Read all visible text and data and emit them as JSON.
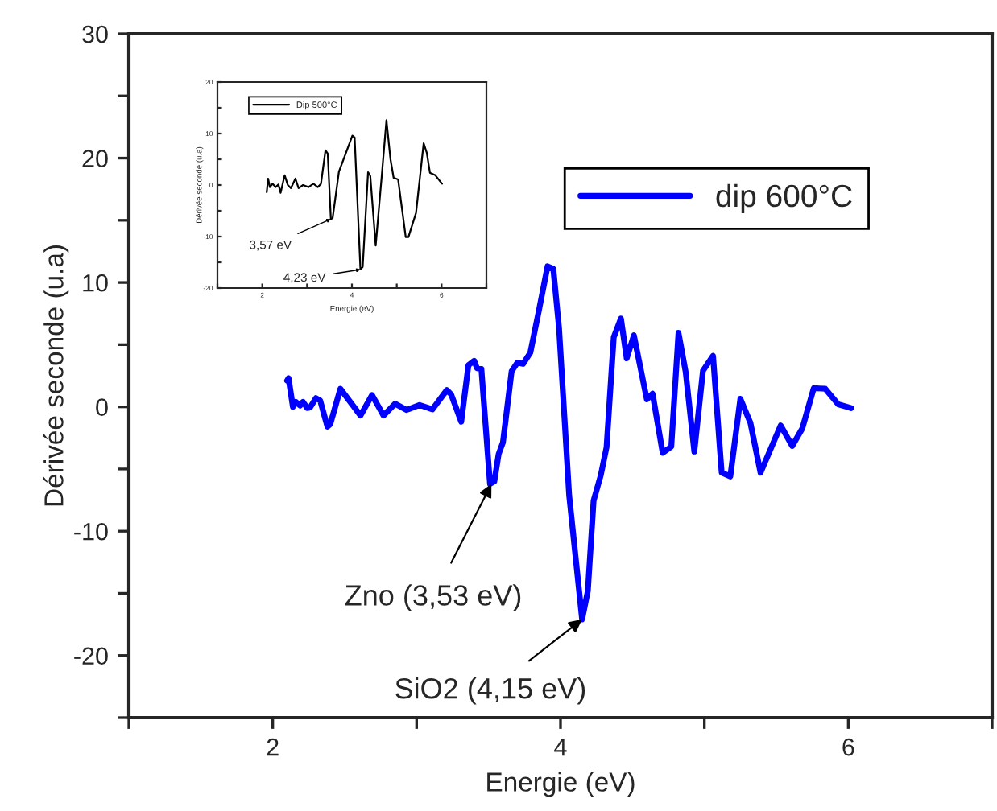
{
  "chart_data": [
    {
      "type": "line",
      "xlabel": "Energie (eV)",
      "ylabel": "Dérivée seconde (u.a)",
      "xlim": [
        1,
        7
      ],
      "ylim": [
        -25,
        30
      ],
      "xticks": [
        {
          "value": 1,
          "label": null
        },
        2,
        {
          "value": 3,
          "label": null
        },
        4,
        {
          "value": 5,
          "label": null
        },
        6,
        {
          "value": 7,
          "label": null
        }
      ],
      "yticks": [
        {
          "value": -25,
          "label": null
        },
        -20,
        {
          "value": -15,
          "label": null
        },
        -10,
        {
          "value": -5,
          "label": null
        },
        0,
        {
          "value": 5,
          "label": null
        },
        10,
        {
          "value": 15,
          "label": null
        },
        20,
        {
          "value": 25,
          "label": null
        },
        30
      ],
      "grid": false,
      "legend": "top right",
      "marker": "none",
      "line_style": "solid",
      "series": [
        {
          "name": "dip 600°C",
          "color": "#0000ff",
          "x": [
            2.1,
            2.11,
            2.14,
            2.16,
            2.19,
            2.21,
            2.24,
            2.26,
            2.3,
            2.33,
            2.38,
            2.4,
            2.47,
            2.61,
            2.69,
            2.77,
            2.85,
            2.93,
            3.02,
            3.11,
            3.21,
            3.24,
            3.31,
            3.36,
            3.4,
            3.42,
            3.45,
            3.51,
            3.54,
            3.57,
            3.6,
            3.66,
            3.7,
            3.74,
            3.79,
            3.85,
            3.91,
            3.95,
            3.99,
            4.06,
            4.15,
            4.19,
            4.23,
            4.28,
            4.32,
            4.37,
            4.42,
            4.46,
            4.51,
            4.6,
            4.64,
            4.71,
            4.77,
            4.82,
            4.87,
            4.93,
            4.99,
            5.06,
            5.12,
            5.18,
            5.25,
            5.32,
            5.39,
            5.53,
            5.61,
            5.68,
            5.76,
            5.84,
            5.93,
            6.02
          ],
          "values": [
            2.1,
            2.3,
            0,
            0.4,
            0.1,
            0.4,
            -0.1,
            -0.05,
            0.7,
            0.5,
            -1.6,
            -1.4,
            1.45,
            -0.7,
            0.95,
            -0.7,
            0.25,
            -0.25,
            0.15,
            -0.2,
            1.35,
            1.0,
            -1.2,
            3.35,
            3.7,
            3.1,
            3.05,
            -6.2,
            -6.0,
            -3.8,
            -2.85,
            2.85,
            3.55,
            3.45,
            4.35,
            7.75,
            11.3,
            11.1,
            6.3,
            -7.1,
            -17.1,
            -14.8,
            -7.55,
            -5.5,
            -3.25,
            5.6,
            7.1,
            3.9,
            5.75,
            0.6,
            1.05,
            -3.7,
            -3.2,
            5.95,
            2.8,
            -3.6,
            2.9,
            4.1,
            -5.3,
            -5.6,
            0.65,
            -1.3,
            -5.3,
            -1.5,
            -3.15,
            -1.75,
            1.5,
            1.45,
            0.2,
            -0.1
          ]
        }
      ],
      "annotations": [
        {
          "text": "Zno (3,53 eV)",
          "x": 3.52,
          "y": -6.2
        },
        {
          "text": "SiO2 (4,15 eV)",
          "x": 4.15,
          "y": -17.1
        }
      ]
    },
    {
      "type": "line",
      "xlabel": "Energie (eV)",
      "ylabel": "Dérivée seconde (u.a)",
      "xlim": [
        1,
        7
      ],
      "ylim": [
        -20,
        20
      ],
      "xticks": [
        {
          "value": 1,
          "label": null
        },
        2,
        {
          "value": 3,
          "label": null
        },
        4,
        {
          "value": 5,
          "label": null
        },
        6,
        {
          "value": 7,
          "label": null
        }
      ],
      "yticks": [
        -20,
        {
          "value": -15,
          "label": null
        },
        -10,
        {
          "value": -5,
          "label": null
        },
        0,
        {
          "value": 5,
          "label": null
        },
        10,
        {
          "value": 15,
          "label": null
        },
        20
      ],
      "grid": false,
      "legend": "top left",
      "marker": "none",
      "line_style": "solid",
      "series": [
        {
          "name": "Dip 500°C",
          "color": "#000000",
          "x": [
            2.1,
            2.13,
            2.17,
            2.23,
            2.3,
            2.36,
            2.41,
            2.5,
            2.57,
            2.64,
            2.74,
            2.81,
            2.91,
            3.03,
            3.14,
            3.24,
            3.31,
            3.41,
            3.46,
            3.53,
            3.57,
            3.71,
            4.01,
            4.06,
            4.19,
            4.24,
            4.36,
            4.41,
            4.53,
            4.66,
            4.77,
            4.86,
            4.93,
            5.03,
            5.2,
            5.26,
            5.43,
            5.6,
            5.67,
            5.74,
            5.86,
            6.01
          ],
          "values": [
            -1.4,
            1.25,
            -0.4,
            0.25,
            -0.4,
            0.1,
            -1.5,
            1.9,
            0,
            -0.6,
            1.25,
            -0.6,
            0,
            -0.4,
            0.25,
            -0.4,
            0.25,
            6.75,
            6.1,
            -6.6,
            -6.4,
            2.6,
            9.6,
            9.25,
            -16.4,
            -15.9,
            2.5,
            1.75,
            -11.75,
            1.25,
            12.6,
            5,
            1.4,
            1.1,
            -10.1,
            -10.1,
            -5.4,
            8.1,
            6.25,
            2.4,
            1.9,
            0.25
          ]
        }
      ],
      "annotations": [
        {
          "text": "3,57 eV",
          "x": 3.53,
          "y": -6.6
        },
        {
          "text": "4,23 eV",
          "x": 4.19,
          "y": -16.4
        }
      ]
    }
  ]
}
